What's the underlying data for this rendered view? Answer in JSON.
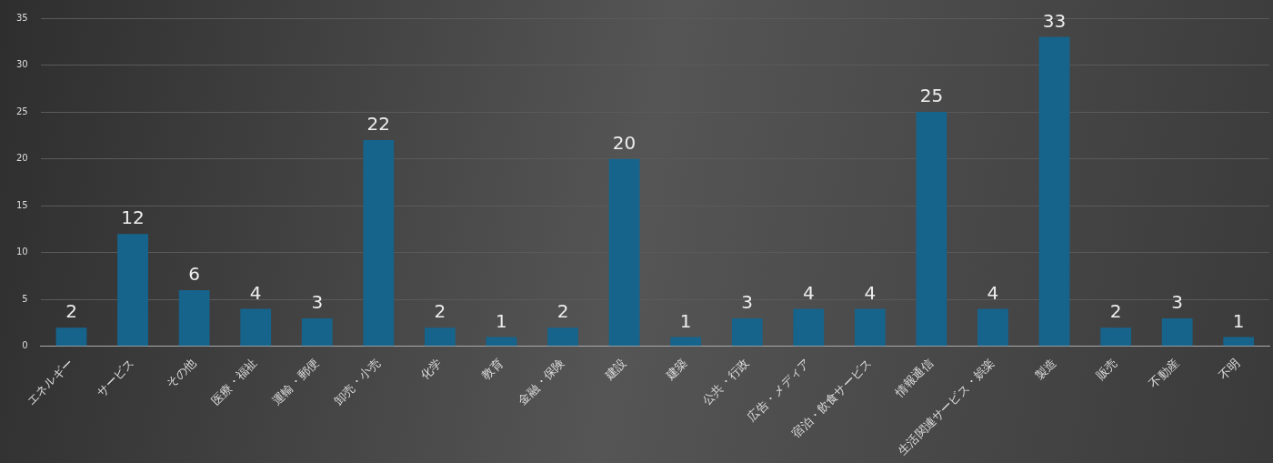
{
  "chart_data": {
    "type": "bar",
    "categories": [
      "エネルギー",
      "サービス",
      "その他",
      "医療・福祉",
      "運輸・郵便",
      "卸売・小売",
      "化学",
      "教育",
      "金融・保険",
      "建設",
      "建築",
      "公共・行政",
      "広告・メディア",
      "宿泊・飲食サービス",
      "情報通信",
      "生活関連サービス・娯楽",
      "製造",
      "販売",
      "不動産",
      "不明"
    ],
    "values": [
      2,
      12,
      6,
      4,
      3,
      22,
      2,
      1,
      2,
      20,
      1,
      3,
      4,
      4,
      25,
      4,
      33,
      2,
      3,
      1
    ],
    "color": "#16648c",
    "ylim": [
      0,
      35
    ],
    "yticks": [
      0,
      5,
      10,
      15,
      20,
      25,
      30,
      35
    ],
    "grid": "y",
    "data_labels": true
  }
}
